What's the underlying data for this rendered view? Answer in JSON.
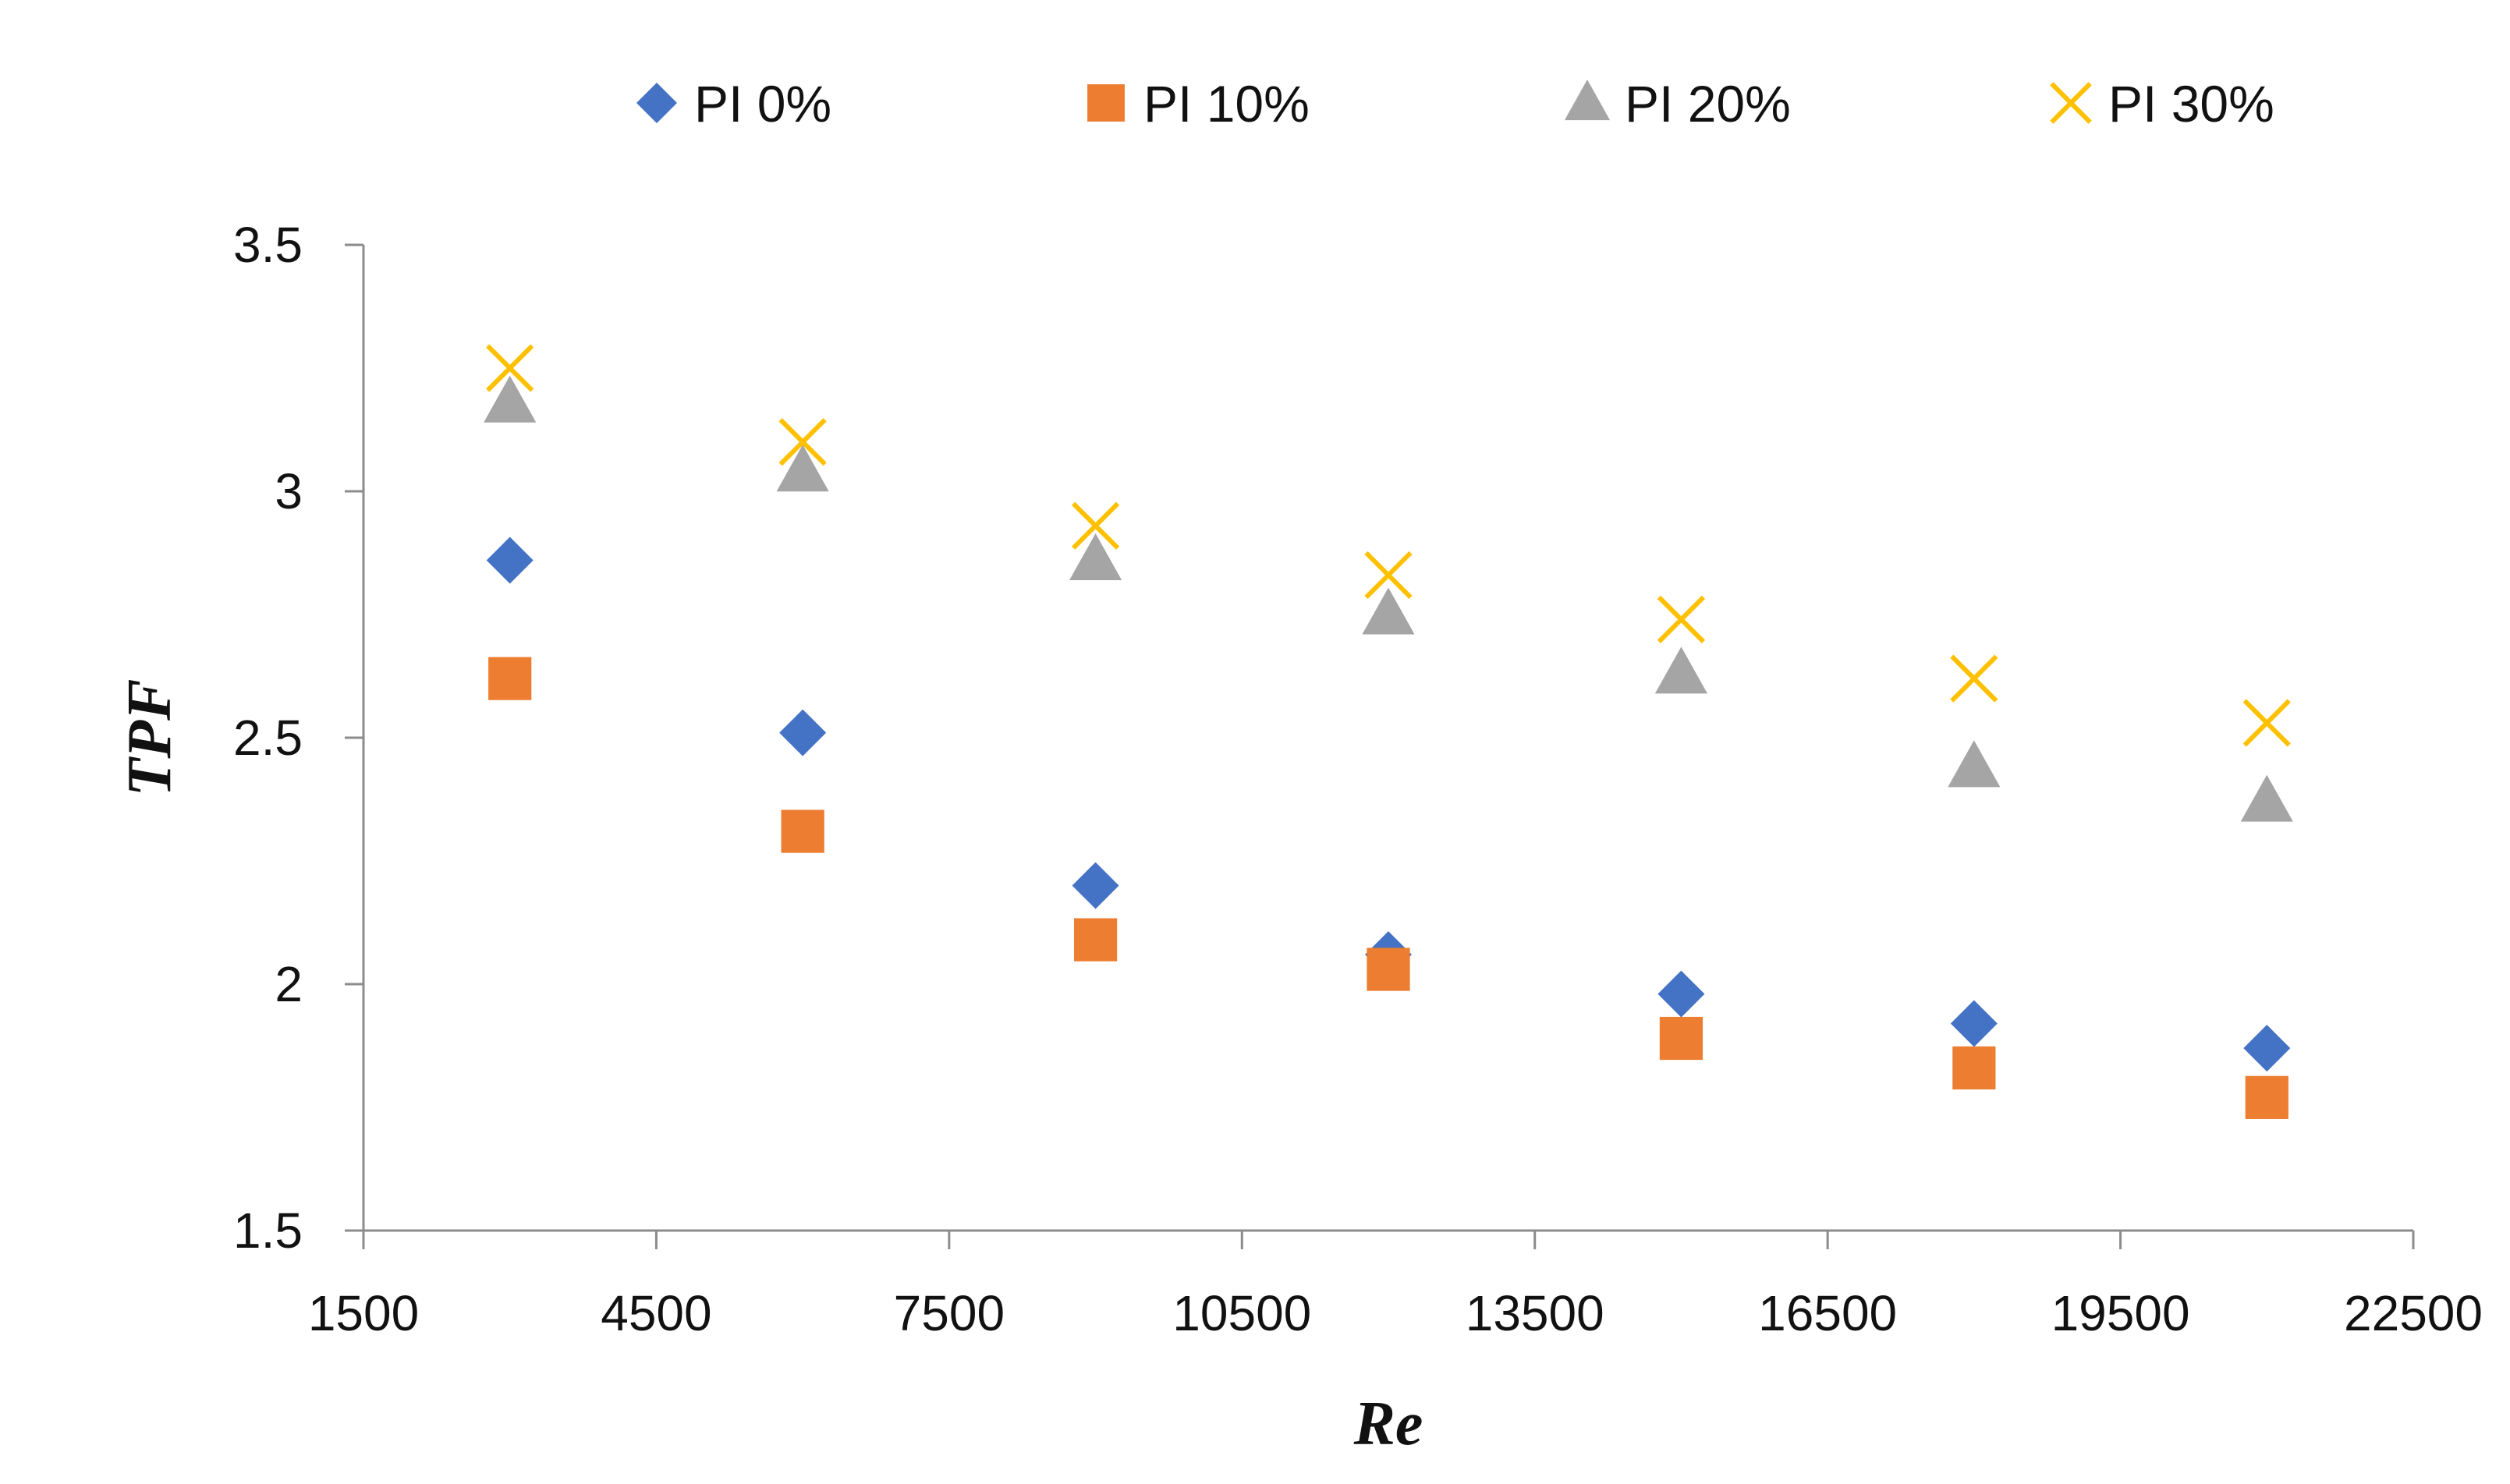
{
  "chart_data": {
    "type": "scatter",
    "title": "",
    "xlabel": "Re",
    "ylabel": "TPF",
    "xlim": [
      1500,
      22500
    ],
    "ylim": [
      1.5,
      3.5
    ],
    "x_ticks": [
      1500,
      4500,
      7500,
      10500,
      13500,
      16500,
      19500,
      22500
    ],
    "x_tick_labels": [
      "1500",
      "4500",
      "7500",
      "10500",
      "13500",
      "16500",
      "19500",
      "22500"
    ],
    "y_ticks": [
      1.5,
      2,
      2.5,
      3,
      3.5
    ],
    "y_tick_labels": [
      "1.5",
      "2",
      "2.5",
      "3",
      "3.5"
    ],
    "grid": false,
    "legend_position": "top",
    "x": [
      3000,
      6000,
      9000,
      12000,
      15000,
      18000,
      21000
    ],
    "series": [
      {
        "name": "PI 0%",
        "marker": "diamond",
        "color": "#4472C4",
        "values": [
          2.86,
          2.51,
          2.2,
          2.06,
          1.98,
          1.92,
          1.87
        ]
      },
      {
        "name": "PI 10%",
        "marker": "square",
        "color": "#ED7D31",
        "values": [
          2.62,
          2.31,
          2.09,
          2.03,
          1.89,
          1.83,
          1.77
        ]
      },
      {
        "name": "PI 20%",
        "marker": "triangle",
        "color": "#A5A5A5",
        "values": [
          3.18,
          3.04,
          2.86,
          2.75,
          2.63,
          2.44,
          2.37
        ]
      },
      {
        "name": "PI 30%",
        "marker": "x",
        "color": "#FFC000",
        "values": [
          3.25,
          3.1,
          2.93,
          2.83,
          2.74,
          2.62,
          2.53
        ]
      }
    ]
  }
}
